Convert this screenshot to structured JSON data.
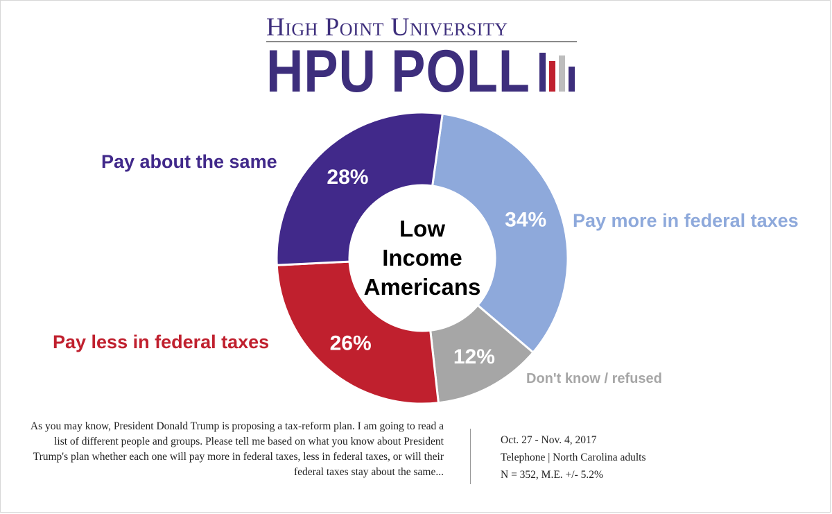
{
  "header": {
    "org": "High Point University",
    "poll": "HPU POLL",
    "logo_colors": [
      "#3d2e7c",
      "#c0202e",
      "#bdbdbd",
      "#3d2e7c"
    ]
  },
  "chart_data": {
    "type": "pie",
    "style": "donut",
    "center_label": [
      "Low",
      "Income",
      "Americans"
    ],
    "slices": [
      {
        "label": "Pay more in federal taxes",
        "value": 34,
        "display": "34%",
        "color": "#8ea9db"
      },
      {
        "label": "Don't know / refused",
        "value": 12,
        "display": "12%",
        "color": "#a6a6a6"
      },
      {
        "label": "Pay less in federal taxes",
        "value": 26,
        "display": "26%",
        "color": "#c0202e"
      },
      {
        "label": "Pay about the same",
        "value": 28,
        "display": "28%",
        "color": "#41298a"
      }
    ]
  },
  "footer": {
    "question": "As you may know, President Donald Trump is proposing a tax-reform plan.  I am going to read a list of different people and groups.  Please tell me based on what you know about President Trump's plan whether each one will pay more in federal taxes, less in federal taxes, or will their federal taxes stay about the same...",
    "dates": "Oct. 27 - Nov. 4, 2017",
    "method": "Telephone  |  North Carolina adults",
    "sample": "N = 352, M.E. +/- 5.2%"
  }
}
